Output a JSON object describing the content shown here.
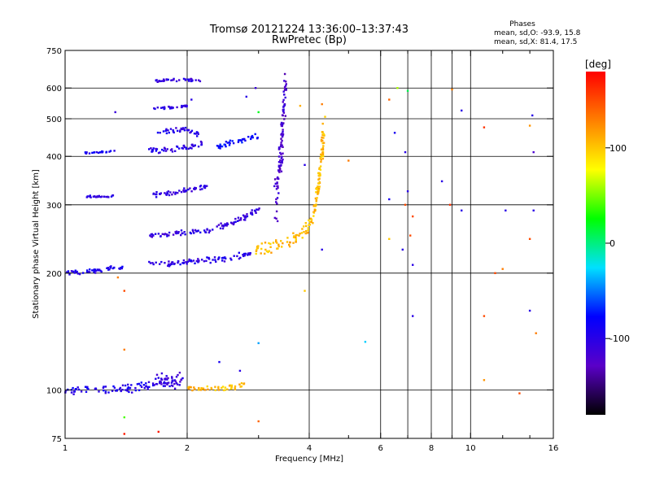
{
  "chart_data": {
    "type": "scatter",
    "title": "Tromsø 20121224 13:36:00–13:37:43",
    "subtitle": "RwPretec (Bp)",
    "xlabel": "Frequency [MHz]",
    "ylabel": "Stationary phase Virtual Height [km]",
    "x_scale": "log",
    "y_scale": "log",
    "xlim": [
      1,
      16
    ],
    "ylim": [
      75,
      750
    ],
    "x_ticks": [
      1,
      2,
      4,
      6,
      8,
      10,
      16
    ],
    "x_minor_ticks": [
      3,
      5,
      7,
      9,
      12,
      14
    ],
    "y_ticks": [
      75,
      100,
      200,
      300,
      400,
      500,
      600,
      750
    ],
    "x_gridlines": [
      2,
      4,
      6,
      7,
      8,
      9,
      10
    ],
    "y_gridlines": [
      100,
      200,
      300,
      400,
      500,
      600
    ],
    "stats": {
      "heading": "Phases",
      "line_o": "mean, sd,O: -93.9, 15.8",
      "line_x": "mean, sd,X: 81.4, 17.5"
    },
    "colorbar": {
      "label": "[deg]",
      "range": [
        -180,
        180
      ],
      "ticks": [
        -100,
        0,
        100
      ],
      "stops": [
        "#000000",
        "#5a00c8",
        "#0000ff",
        "#00e0ff",
        "#00ff00",
        "#ffff00",
        "#ff8000",
        "#ff0000"
      ]
    },
    "point_size_note": "",
    "traces": [
      {
        "segments": [
          [
            1.0,
            200
          ],
          [
            1.1,
            201
          ],
          [
            1.25,
            205
          ],
          [
            1.38,
            208
          ]
        ],
        "phase": -95,
        "spread": 2.5
      },
      {
        "segments": [
          [
            1.62,
            210
          ],
          [
            1.9,
            213
          ],
          [
            2.2,
            216
          ],
          [
            2.55,
            219
          ],
          [
            2.85,
            224
          ]
        ],
        "phase": -100,
        "spread": 3
      },
      {
        "segments": [
          [
            1.62,
            250
          ],
          [
            1.9,
            253
          ],
          [
            2.1,
            256
          ],
          [
            2.3,
            258
          ]
        ],
        "phase": -105,
        "spread": 3.5
      },
      {
        "segments": [
          [
            2.35,
            262
          ],
          [
            2.6,
            270
          ],
          [
            2.8,
            280
          ],
          [
            3.0,
            292
          ]
        ],
        "phase": -105,
        "spread": 4
      },
      {
        "segments": [
          [
            1.65,
            318
          ],
          [
            1.9,
            322
          ],
          [
            2.1,
            330
          ],
          [
            2.25,
            334
          ]
        ],
        "phase": -105,
        "spread": 4
      },
      {
        "segments": [
          [
            1.12,
            314
          ],
          [
            1.2,
            315
          ],
          [
            1.32,
            316
          ]
        ],
        "phase": -105,
        "spread": 2
      },
      {
        "segments": [
          [
            1.6,
            412
          ],
          [
            1.85,
            418
          ],
          [
            2.05,
            425
          ],
          [
            2.2,
            430
          ]
        ],
        "phase": -100,
        "spread": 6
      },
      {
        "segments": [
          [
            2.35,
            420
          ],
          [
            2.6,
            435
          ],
          [
            2.8,
            445
          ],
          [
            3.0,
            452
          ]
        ],
        "phase": -80,
        "spread": 6
      },
      {
        "segments": [
          [
            1.12,
            408
          ],
          [
            1.22,
            410
          ],
          [
            1.32,
            412
          ]
        ],
        "phase": -90,
        "spread": 2
      },
      {
        "segments": [
          [
            1.7,
            460
          ],
          [
            1.95,
            470
          ],
          [
            2.15,
            455
          ]
        ],
        "phase": -100,
        "spread": 5
      },
      {
        "segments": [
          [
            1.65,
            530
          ],
          [
            1.85,
            535
          ],
          [
            2.0,
            540
          ]
        ],
        "phase": -105,
        "spread": 3
      },
      {
        "segments": [
          [
            1.65,
            625
          ],
          [
            1.9,
            630
          ],
          [
            2.15,
            628
          ]
        ],
        "phase": -105,
        "spread": 4
      },
      {
        "segments": [
          [
            3.3,
            300
          ],
          [
            3.4,
            400
          ],
          [
            3.45,
            500
          ],
          [
            3.5,
            630
          ]
        ],
        "phase": -120,
        "spread": 40
      },
      {
        "segments": [
          [
            2.9,
            228
          ],
          [
            3.2,
            234
          ],
          [
            3.6,
            240
          ],
          [
            3.9,
            255
          ],
          [
            4.1,
            280
          ],
          [
            4.2,
            330
          ],
          [
            4.3,
            400
          ],
          [
            4.35,
            500
          ]
        ],
        "phase": 105,
        "spread": 8
      },
      {
        "segments": [
          [
            1.0,
            100
          ],
          [
            1.2,
            100
          ],
          [
            1.45,
            101
          ],
          [
            1.65,
            103
          ],
          [
            1.9,
            105
          ]
        ],
        "phase": -95,
        "spread": 2
      },
      {
        "segments": [
          [
            1.65,
            106
          ],
          [
            1.75,
            108
          ],
          [
            1.85,
            104
          ],
          [
            1.95,
            108
          ]
        ],
        "phase": -110,
        "spread": 4
      },
      {
        "segments": [
          [
            2.0,
            101
          ],
          [
            2.3,
            101
          ],
          [
            2.6,
            102
          ],
          [
            2.75,
            103
          ]
        ],
        "phase": 105,
        "spread": 1.5
      }
    ],
    "isolated_points": [
      [
        1.33,
        520,
        -110
      ],
      [
        2.05,
        560,
        -100
      ],
      [
        2.8,
        570,
        -100
      ],
      [
        2.95,
        600,
        -110
      ],
      [
        3.0,
        520,
        20
      ],
      [
        3.8,
        540,
        110
      ],
      [
        4.3,
        545,
        130
      ],
      [
        6.3,
        560,
        140
      ],
      [
        6.6,
        600,
        60
      ],
      [
        7.0,
        590,
        10
      ],
      [
        9.0,
        595,
        130
      ],
      [
        9.5,
        525,
        -100
      ],
      [
        10.8,
        475,
        160
      ],
      [
        14.0,
        480,
        120
      ],
      [
        14.3,
        410,
        -120
      ],
      [
        14.2,
        510,
        -100
      ],
      [
        6.5,
        460,
        -90
      ],
      [
        6.9,
        410,
        -100
      ],
      [
        5.0,
        390,
        130
      ],
      [
        3.9,
        380,
        -100
      ],
      [
        7.0,
        325,
        -100
      ],
      [
        6.3,
        310,
        -90
      ],
      [
        6.9,
        300,
        150
      ],
      [
        8.5,
        345,
        -100
      ],
      [
        8.9,
        300,
        160
      ],
      [
        9.5,
        290,
        -100
      ],
      [
        12.2,
        290,
        -100
      ],
      [
        14.3,
        290,
        -100
      ],
      [
        7.2,
        280,
        150
      ],
      [
        7.1,
        250,
        150
      ],
      [
        6.3,
        245,
        100
      ],
      [
        6.8,
        230,
        -100
      ],
      [
        4.3,
        230,
        -100
      ],
      [
        7.2,
        210,
        -100
      ],
      [
        14.0,
        245,
        150
      ],
      [
        12.0,
        205,
        130
      ],
      [
        11.5,
        200,
        150
      ],
      [
        3.9,
        180,
        100
      ],
      [
        1.4,
        180,
        150
      ],
      [
        1.35,
        195,
        130
      ],
      [
        7.2,
        155,
        -100
      ],
      [
        10.8,
        155,
        150
      ],
      [
        14.0,
        160,
        -100
      ],
      [
        14.5,
        140,
        130
      ],
      [
        3.0,
        132,
        -40
      ],
      [
        5.5,
        133,
        -30
      ],
      [
        1.4,
        127,
        130
      ],
      [
        10.8,
        106,
        120
      ],
      [
        13.2,
        98,
        150
      ],
      [
        3.0,
        83,
        140
      ],
      [
        1.4,
        85,
        40
      ],
      [
        1.7,
        78,
        170
      ],
      [
        1.4,
        77,
        170
      ],
      [
        2.7,
        112,
        -100
      ],
      [
        2.4,
        118,
        -90
      ]
    ]
  }
}
